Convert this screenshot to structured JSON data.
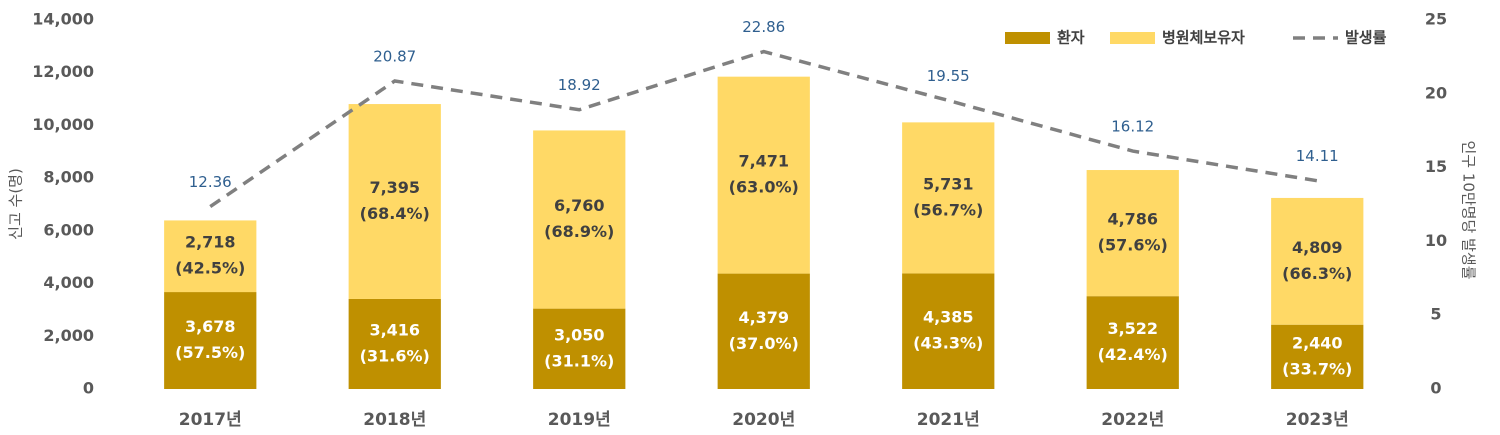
{
  "chart_data": {
    "type": "bar_line",
    "y_label": "신고 수(명)",
    "y2_label": "인구 10만명당 발생률",
    "categories": [
      "2017년",
      "2018년",
      "2019년",
      "2020년",
      "2021년",
      "2022년",
      "2023년"
    ],
    "series": [
      {
        "name": "환자",
        "type": "bar",
        "color": "#bf9000",
        "values": [
          3678,
          3416,
          3050,
          4379,
          4385,
          3522,
          2440
        ],
        "value_labels": [
          "3,678",
          "3,416",
          "3,050",
          "4,379",
          "4,385",
          "3,522",
          "2,440"
        ],
        "share_labels": [
          "(57.5%)",
          "(31.6%)",
          "(31.1%)",
          "(37.0%)",
          "(43.3%)",
          "(42.4%)",
          "(33.7%)"
        ]
      },
      {
        "name": "병원체보유자",
        "type": "bar",
        "color": "#ffd966",
        "values": [
          2718,
          7395,
          6760,
          7471,
          5731,
          4786,
          4809
        ],
        "value_labels": [
          "2,718",
          "7,395",
          "6,760",
          "7,471",
          "5,731",
          "4,786",
          "4,809"
        ],
        "share_labels": [
          "(42.5%)",
          "(68.4%)",
          "(68.9%)",
          "(63.0%)",
          "(56.7%)",
          "(57.6%)",
          "(66.3%)"
        ]
      },
      {
        "name": "발생률",
        "type": "line",
        "axis": "y2",
        "color": "#808080",
        "dashed": true,
        "values": [
          12.36,
          20.87,
          18.92,
          22.86,
          19.55,
          16.12,
          14.11
        ]
      }
    ],
    "stacked": true,
    "ylim": [
      0,
      14000
    ],
    "yticks": [
      0,
      {
        "value": 2000,
        "label": "2,000"
      },
      {
        "value": 4000,
        "label": "4,000"
      },
      {
        "value": 6000,
        "label": "6,000"
      },
      {
        "value": 8000,
        "label": "8,000"
      },
      {
        "value": 10000,
        "label": "10,000"
      },
      {
        "value": 12000,
        "label": "12,000"
      },
      {
        "value": 14000,
        "label": "14,000"
      }
    ],
    "y2lim": [
      0,
      25
    ],
    "y2ticks": [
      0,
      5,
      10,
      15,
      20,
      25
    ],
    "grid": false,
    "legend": "top-right"
  }
}
